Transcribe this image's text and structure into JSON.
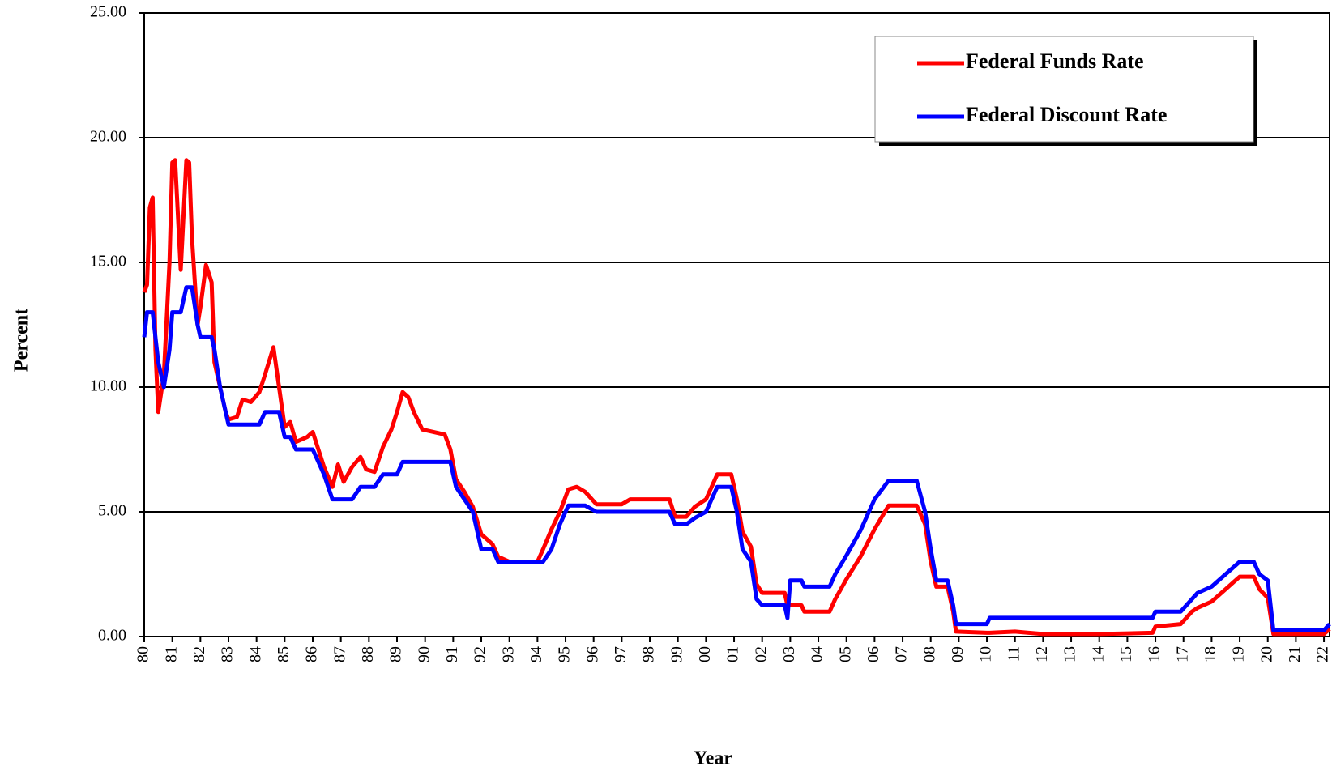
{
  "chart_data": {
    "type": "line",
    "x_label": "Year",
    "y_label": "Percent",
    "xlim": [
      1980,
      2022.2
    ],
    "ylim": [
      0,
      25
    ],
    "yticks": [
      {
        "value": 0,
        "label": "0.00"
      },
      {
        "value": 5,
        "label": "5.00"
      },
      {
        "value": 10,
        "label": "10.00"
      },
      {
        "value": 15,
        "label": "15.00"
      },
      {
        "value": 20,
        "label": "20.00"
      },
      {
        "value": 25,
        "label": "25.00"
      }
    ],
    "xticks": [
      {
        "value": 1980,
        "label": "80"
      },
      {
        "value": 1981,
        "label": "81"
      },
      {
        "value": 1982,
        "label": "82"
      },
      {
        "value": 1983,
        "label": "83"
      },
      {
        "value": 1984,
        "label": "84"
      },
      {
        "value": 1985,
        "label": "85"
      },
      {
        "value": 1986,
        "label": "86"
      },
      {
        "value": 1987,
        "label": "87"
      },
      {
        "value": 1988,
        "label": "88"
      },
      {
        "value": 1989,
        "label": "89"
      },
      {
        "value": 1990,
        "label": "90"
      },
      {
        "value": 1991,
        "label": "91"
      },
      {
        "value": 1992,
        "label": "92"
      },
      {
        "value": 1993,
        "label": "93"
      },
      {
        "value": 1994,
        "label": "94"
      },
      {
        "value": 1995,
        "label": "95"
      },
      {
        "value": 1996,
        "label": "96"
      },
      {
        "value": 1997,
        "label": "97"
      },
      {
        "value": 1998,
        "label": "98"
      },
      {
        "value": 1999,
        "label": "99"
      },
      {
        "value": 2000,
        "label": "00"
      },
      {
        "value": 2001,
        "label": "01"
      },
      {
        "value": 2002,
        "label": "02"
      },
      {
        "value": 2003,
        "label": "03"
      },
      {
        "value": 2004,
        "label": "04"
      },
      {
        "value": 2005,
        "label": "05"
      },
      {
        "value": 2006,
        "label": "06"
      },
      {
        "value": 2007,
        "label": "07"
      },
      {
        "value": 2008,
        "label": "08"
      },
      {
        "value": 2009,
        "label": "09"
      },
      {
        "value": 2010,
        "label": "10"
      },
      {
        "value": 2011,
        "label": "11"
      },
      {
        "value": 2012,
        "label": "12"
      },
      {
        "value": 2013,
        "label": "13"
      },
      {
        "value": 2014,
        "label": "14"
      },
      {
        "value": 2015,
        "label": "15"
      },
      {
        "value": 2016,
        "label": "16"
      },
      {
        "value": 2017,
        "label": "17"
      },
      {
        "value": 2018,
        "label": "18"
      },
      {
        "value": 2019,
        "label": "19"
      },
      {
        "value": 2020,
        "label": "20"
      },
      {
        "value": 2021,
        "label": "21"
      },
      {
        "value": 2022,
        "label": "22"
      }
    ],
    "grid": true,
    "legend": "upper right",
    "x": [
      1980.0,
      1980.1,
      1980.2,
      1980.3,
      1980.4,
      1980.5,
      1980.7,
      1980.9,
      1981.0,
      1981.1,
      1981.3,
      1981.5,
      1981.6,
      1981.7,
      1981.9,
      1982.0,
      1982.2,
      1982.4,
      1982.5,
      1982.7,
      1982.9,
      1983.0,
      1983.3,
      1983.5,
      1983.8,
      1984.1,
      1984.3,
      1984.6,
      1984.8,
      1985.0,
      1985.2,
      1985.4,
      1985.8,
      1986.0,
      1986.2,
      1986.4,
      1986.7,
      1986.9,
      1987.1,
      1987.4,
      1987.7,
      1987.9,
      1988.2,
      1988.5,
      1988.8,
      1989.0,
      1989.2,
      1989.4,
      1989.6,
      1989.9,
      1990.3,
      1990.7,
      1990.9,
      1991.1,
      1991.4,
      1991.7,
      1992.0,
      1992.4,
      1992.6,
      1993.0,
      1993.5,
      1994.0,
      1994.2,
      1994.5,
      1994.8,
      1995.1,
      1995.4,
      1995.7,
      1996.1,
      1996.5,
      1997.0,
      1997.3,
      1998.0,
      1998.7,
      1998.9,
      1999.3,
      1999.6,
      2000.0,
      2000.4,
      2000.9,
      2001.1,
      2001.3,
      2001.6,
      2001.8,
      2002.0,
      2002.8,
      2002.9,
      2003.0,
      2003.4,
      2003.5,
      2004.4,
      2004.6,
      2005.0,
      2005.5,
      2006.0,
      2006.5,
      2007.5,
      2007.8,
      2008.0,
      2008.2,
      2008.6,
      2008.8,
      2008.9,
      2010.0,
      2010.1,
      2011.0,
      2012.0,
      2014.0,
      2015.9,
      2016.0,
      2016.9,
      2017.3,
      2017.5,
      2018.0,
      2018.5,
      2019.0,
      2019.5,
      2019.7,
      2020.0,
      2020.2,
      2022.0,
      2022.2
    ],
    "series": [
      {
        "name": "Federal Funds Rate",
        "color": "#ff0000",
        "values": [
          13.8,
          14.1,
          17.2,
          17.6,
          11.5,
          9.0,
          10.5,
          15,
          19,
          19.1,
          14.7,
          19.1,
          19.0,
          16,
          12.5,
          13.2,
          14.9,
          14.2,
          11,
          10,
          9,
          8.7,
          8.8,
          9.5,
          9.4,
          9.8,
          10.5,
          11.6,
          10,
          8.4,
          8.6,
          7.8,
          8.0,
          8.2,
          7.5,
          6.8,
          6.0,
          6.9,
          6.2,
          6.8,
          7.2,
          6.7,
          6.6,
          7.6,
          8.3,
          9.0,
          9.8,
          9.6,
          9.0,
          8.3,
          8.2,
          8.1,
          7.5,
          6.3,
          5.8,
          5.2,
          4.1,
          3.7,
          3.2,
          3.0,
          3.0,
          3.0,
          3.5,
          4.3,
          5.0,
          5.9,
          6.0,
          5.8,
          5.3,
          5.3,
          5.3,
          5.5,
          5.5,
          5.5,
          4.8,
          4.8,
          5.2,
          5.5,
          6.5,
          6.5,
          5.5,
          4.2,
          3.6,
          2.1,
          1.75,
          1.75,
          1.25,
          1.25,
          1.25,
          1.0,
          1.0,
          1.5,
          2.3,
          3.2,
          4.3,
          5.25,
          5.25,
          4.5,
          3.0,
          2.0,
          2.0,
          1.0,
          0.2,
          0.15,
          0.15,
          0.2,
          0.1,
          0.1,
          0.15,
          0.4,
          0.5,
          1.0,
          1.15,
          1.4,
          1.9,
          2.4,
          2.4,
          1.9,
          1.55,
          0.1,
          0.1,
          0.3
        ]
      },
      {
        "name": "Federal Discount Rate",
        "color": "#0000ff",
        "values": [
          12,
          13,
          13,
          13,
          12,
          11,
          10,
          11.5,
          13,
          13,
          13,
          14,
          14,
          14,
          12.5,
          12,
          12,
          12,
          11.5,
          10,
          9,
          8.5,
          8.5,
          8.5,
          8.5,
          8.5,
          9,
          9,
          9,
          8,
          8,
          7.5,
          7.5,
          7.5,
          7,
          6.5,
          5.5,
          5.5,
          5.5,
          5.5,
          6,
          6,
          6,
          6.5,
          6.5,
          6.5,
          7,
          7,
          7,
          7,
          7,
          7,
          7,
          6,
          5.5,
          5,
          3.5,
          3.5,
          3,
          3,
          3,
          3,
          3,
          3.5,
          4.5,
          5.25,
          5.25,
          5.25,
          5.0,
          5,
          5,
          5,
          5,
          5,
          4.5,
          4.5,
          4.75,
          5,
          6,
          6,
          5,
          3.5,
          3,
          1.5,
          1.25,
          1.25,
          0.75,
          2.25,
          2.25,
          2.0,
          2.0,
          2.5,
          3.25,
          4.25,
          5.5,
          6.25,
          6.25,
          5,
          3.5,
          2.25,
          2.25,
          1.25,
          0.5,
          0.5,
          0.75,
          0.75,
          0.75,
          0.75,
          0.75,
          1.0,
          1.0,
          1.5,
          1.75,
          2.0,
          2.5,
          3.0,
          3.0,
          2.5,
          2.25,
          0.25,
          0.25,
          0.5
        ]
      }
    ]
  }
}
